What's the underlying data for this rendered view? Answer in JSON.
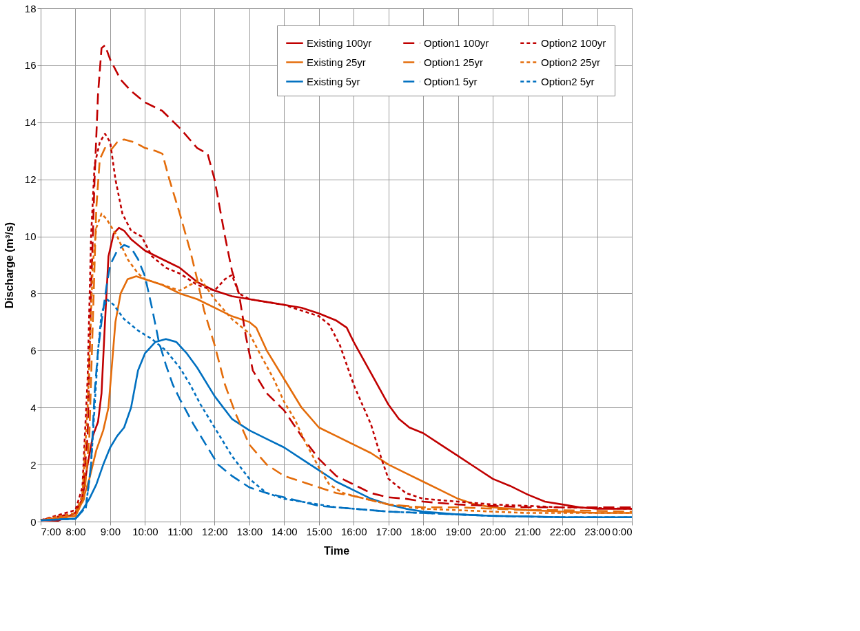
{
  "chart_data": {
    "type": "line",
    "xlabel": "Time",
    "ylabel": "Discharge  (m³/s)",
    "xlim": [
      7,
      24
    ],
    "ylim": [
      0,
      18
    ],
    "xticks": [
      {
        "value": 7,
        "label": "7:00"
      },
      {
        "value": 8,
        "label": "8:00"
      },
      {
        "value": 9,
        "label": "9:00"
      },
      {
        "value": 10,
        "label": "10:00"
      },
      {
        "value": 11,
        "label": "11:00"
      },
      {
        "value": 12,
        "label": "12:00"
      },
      {
        "value": 13,
        "label": "13:00"
      },
      {
        "value": 14,
        "label": "14:00"
      },
      {
        "value": 15,
        "label": "15:00"
      },
      {
        "value": 16,
        "label": "16:00"
      },
      {
        "value": 17,
        "label": "17:00"
      },
      {
        "value": 18,
        "label": "18:00"
      },
      {
        "value": 19,
        "label": "19:00"
      },
      {
        "value": 20,
        "label": "20:00"
      },
      {
        "value": 21,
        "label": "21:00"
      },
      {
        "value": 22,
        "label": "22:00"
      },
      {
        "value": 23,
        "label": "23:00"
      },
      {
        "value": 24,
        "label": "0:00"
      }
    ],
    "yticks": [
      0,
      2,
      4,
      6,
      8,
      10,
      12,
      14,
      16,
      18
    ],
    "grid": true,
    "legend": "top right",
    "series": [
      {
        "name": "Existing 100yr",
        "color": "#c00000",
        "line_style": "solid",
        "x": [
          7,
          7.5,
          8,
          8.2,
          8.35,
          8.5,
          8.65,
          8.75,
          8.85,
          8.95,
          9.1,
          9.25,
          9.4,
          9.6,
          10,
          10.5,
          11,
          11.5,
          12,
          12.5,
          13,
          13.5,
          14,
          14.5,
          15,
          15.5,
          15.8,
          16,
          16.5,
          17,
          17.3,
          17.6,
          18,
          18.5,
          19,
          19.5,
          20,
          20.5,
          21,
          21.5,
          22,
          22.5,
          23,
          24
        ],
        "values": [
          0.05,
          0.03,
          0.3,
          0.8,
          2.0,
          3.0,
          3.5,
          4.5,
          7,
          9.3,
          10.1,
          10.3,
          10.2,
          9.9,
          9.5,
          9.2,
          8.9,
          8.4,
          8.1,
          7.9,
          7.8,
          7.7,
          7.6,
          7.5,
          7.3,
          7.05,
          6.8,
          6.3,
          5.2,
          4.1,
          3.6,
          3.3,
          3.1,
          2.7,
          2.3,
          1.9,
          1.5,
          1.25,
          0.95,
          0.7,
          0.6,
          0.5,
          0.45,
          0.45
        ]
      },
      {
        "name": "Existing 25yr",
        "color": "#e46c0a",
        "line_style": "solid",
        "x": [
          7,
          8,
          8.2,
          8.4,
          8.6,
          8.8,
          8.95,
          9.05,
          9.15,
          9.3,
          9.5,
          9.75,
          10,
          10.5,
          11,
          11.5,
          12,
          12.5,
          13,
          13.2,
          13.5,
          14,
          14.5,
          15,
          15.5,
          16,
          16.5,
          17,
          17.5,
          18,
          18.5,
          19,
          19.5,
          20,
          21,
          22,
          23,
          24
        ],
        "values": [
          0.05,
          0.2,
          0.7,
          1.5,
          2.5,
          3.2,
          4.0,
          5.5,
          7,
          8.0,
          8.5,
          8.6,
          8.5,
          8.3,
          8.0,
          7.8,
          7.5,
          7.2,
          7.0,
          6.8,
          6.0,
          5.0,
          4.0,
          3.3,
          3.0,
          2.7,
          2.4,
          2.0,
          1.7,
          1.4,
          1.1,
          0.8,
          0.6,
          0.5,
          0.4,
          0.35,
          0.3,
          0.3
        ]
      },
      {
        "name": "Existing 5yr",
        "color": "#0070c0",
        "line_style": "solid",
        "x": [
          7,
          8,
          8.2,
          8.4,
          8.6,
          8.8,
          9,
          9.2,
          9.4,
          9.6,
          9.8,
          10,
          10.3,
          10.6,
          10.9,
          11.2,
          11.5,
          12,
          12.5,
          13,
          13.5,
          14,
          14.5,
          15,
          15.5,
          16,
          16.5,
          17,
          17.5,
          18,
          19,
          20,
          21,
          22,
          24
        ],
        "values": [
          0.05,
          0.1,
          0.4,
          0.8,
          1.3,
          2.0,
          2.6,
          3.0,
          3.3,
          4.0,
          5.3,
          5.9,
          6.3,
          6.4,
          6.3,
          5.9,
          5.4,
          4.4,
          3.6,
          3.2,
          2.9,
          2.6,
          2.2,
          1.8,
          1.4,
          1.1,
          0.8,
          0.6,
          0.45,
          0.35,
          0.25,
          0.2,
          0.18,
          0.15,
          0.15
        ]
      },
      {
        "name": "Option1 100yr",
        "color": "#c00000",
        "line_style": "dashed",
        "x": [
          7,
          8,
          8.2,
          8.35,
          8.45,
          8.55,
          8.65,
          8.75,
          8.85,
          9,
          9.3,
          9.6,
          10,
          10.5,
          11,
          11.5,
          11.8,
          12,
          12.3,
          12.5,
          12.7,
          12.9,
          13.1,
          13.5,
          14,
          14.5,
          15,
          15.5,
          16,
          16.5,
          17,
          17.5,
          18,
          19,
          20,
          21,
          22,
          24
        ],
        "values": [
          0.05,
          0.3,
          0.9,
          3,
          8,
          12,
          15,
          16.6,
          16.7,
          16.2,
          15.5,
          15.1,
          14.7,
          14.4,
          13.8,
          13.1,
          12.9,
          12.0,
          10.0,
          8.8,
          8.0,
          6.5,
          5.3,
          4.5,
          3.9,
          3.0,
          2.2,
          1.6,
          1.3,
          1.0,
          0.85,
          0.8,
          0.7,
          0.6,
          0.55,
          0.5,
          0.5,
          0.5
        ]
      },
      {
        "name": "Option1 25yr",
        "color": "#e46c0a",
        "line_style": "dashed",
        "x": [
          7,
          8,
          8.25,
          8.4,
          8.5,
          8.6,
          8.7,
          8.85,
          9,
          9.2,
          9.4,
          9.7,
          10,
          10.3,
          10.5,
          10.7,
          11,
          11.3,
          11.5,
          11.7,
          12,
          12.3,
          12.6,
          13,
          13.5,
          14,
          14.5,
          15,
          15.5,
          16,
          16.5,
          17,
          17.5,
          18,
          19,
          20,
          21,
          22,
          24
        ],
        "values": [
          0.05,
          0.2,
          0.8,
          3,
          7,
          11,
          12.7,
          13.1,
          13.0,
          13.3,
          13.4,
          13.3,
          13.1,
          13.0,
          12.9,
          12.0,
          10.8,
          9.5,
          8.5,
          7.4,
          6.2,
          4.8,
          3.8,
          2.7,
          2.0,
          1.6,
          1.4,
          1.2,
          1.0,
          0.9,
          0.75,
          0.6,
          0.55,
          0.5,
          0.5,
          0.45,
          0.4,
          0.4,
          0.35
        ]
      },
      {
        "name": "Option1 5yr",
        "color": "#0070c0",
        "line_style": "dashed",
        "x": [
          7,
          8,
          8.3,
          8.45,
          8.55,
          8.65,
          8.75,
          8.9,
          9,
          9.2,
          9.4,
          9.6,
          9.8,
          10,
          10.2,
          10.4,
          10.6,
          10.8,
          11,
          11.4,
          11.8,
          12.1,
          12.5,
          13,
          13.5,
          14,
          14.5,
          15,
          15.5,
          16,
          17,
          18,
          19,
          20,
          22,
          24
        ],
        "values": [
          0.05,
          0.1,
          0.5,
          2,
          4.5,
          6,
          7,
          8.3,
          9.0,
          9.5,
          9.7,
          9.6,
          9.2,
          8.6,
          7.5,
          6.3,
          5.5,
          4.8,
          4.3,
          3.4,
          2.6,
          2.0,
          1.6,
          1.2,
          1.0,
          0.85,
          0.7,
          0.55,
          0.5,
          0.45,
          0.35,
          0.3,
          0.25,
          0.2,
          0.15,
          0.15
        ]
      },
      {
        "name": "Option2 100yr",
        "color": "#c00000",
        "line_style": "dotted",
        "x": [
          7,
          8,
          8.2,
          8.35,
          8.45,
          8.55,
          8.7,
          8.85,
          9,
          9.15,
          9.35,
          9.6,
          9.9,
          10.2,
          10.6,
          11,
          11.5,
          12,
          12.3,
          12.5,
          12.7,
          13,
          14,
          14.5,
          15,
          15.3,
          15.6,
          16,
          16.5,
          16.8,
          17,
          17.5,
          18,
          18.5,
          19,
          20,
          21,
          22,
          24
        ],
        "values": [
          0.05,
          0.4,
          1.2,
          5,
          10,
          12.5,
          13.3,
          13.6,
          13.3,
          12,
          10.8,
          10.2,
          10.0,
          9.3,
          8.9,
          8.7,
          8.3,
          8.1,
          8.5,
          8.65,
          8.0,
          7.8,
          7.6,
          7.4,
          7.2,
          6.9,
          6.2,
          4.8,
          3.4,
          2.2,
          1.5,
          1.0,
          0.8,
          0.75,
          0.7,
          0.6,
          0.55,
          0.5,
          0.45
        ]
      },
      {
        "name": "Option2 25yr",
        "color": "#e46c0a",
        "line_style": "dotted",
        "x": [
          7,
          8,
          8.2,
          8.35,
          8.5,
          8.6,
          8.75,
          8.9,
          9.2,
          9.5,
          9.8,
          10,
          10.5,
          11,
          11.3,
          11.6,
          12,
          12.5,
          13,
          13.3,
          13.7,
          14,
          14.3,
          14.6,
          15,
          15.3,
          15.7,
          16,
          16.5,
          17,
          18,
          19,
          20,
          21,
          24
        ],
        "values": [
          0.05,
          0.3,
          0.9,
          4,
          9,
          10.3,
          10.8,
          10.6,
          10.0,
          9.2,
          8.7,
          8.5,
          8.3,
          8.1,
          8.3,
          8.5,
          7.8,
          7.1,
          6.6,
          5.9,
          5.0,
          4.2,
          3.6,
          2.8,
          1.9,
          1.3,
          1.0,
          0.9,
          0.75,
          0.6,
          0.45,
          0.4,
          0.35,
          0.3,
          0.3
        ]
      },
      {
        "name": "Option2 5yr",
        "color": "#0070c0",
        "line_style": "dotted",
        "x": [
          7,
          8,
          8.3,
          8.45,
          8.55,
          8.65,
          8.75,
          8.9,
          9.1,
          9.4,
          9.8,
          10.2,
          10.6,
          11,
          11.3,
          11.6,
          12,
          12.5,
          13,
          13.5,
          14,
          14.5,
          15,
          15.5,
          16,
          17,
          18,
          19,
          20,
          22,
          24
        ],
        "values": [
          0.05,
          0.1,
          0.5,
          2,
          4,
          6,
          7.3,
          7.8,
          7.6,
          7.1,
          6.7,
          6.4,
          6.0,
          5.4,
          4.8,
          4.1,
          3.3,
          2.3,
          1.5,
          1.0,
          0.8,
          0.7,
          0.6,
          0.5,
          0.45,
          0.35,
          0.3,
          0.25,
          0.2,
          0.15,
          0.15
        ]
      }
    ]
  }
}
